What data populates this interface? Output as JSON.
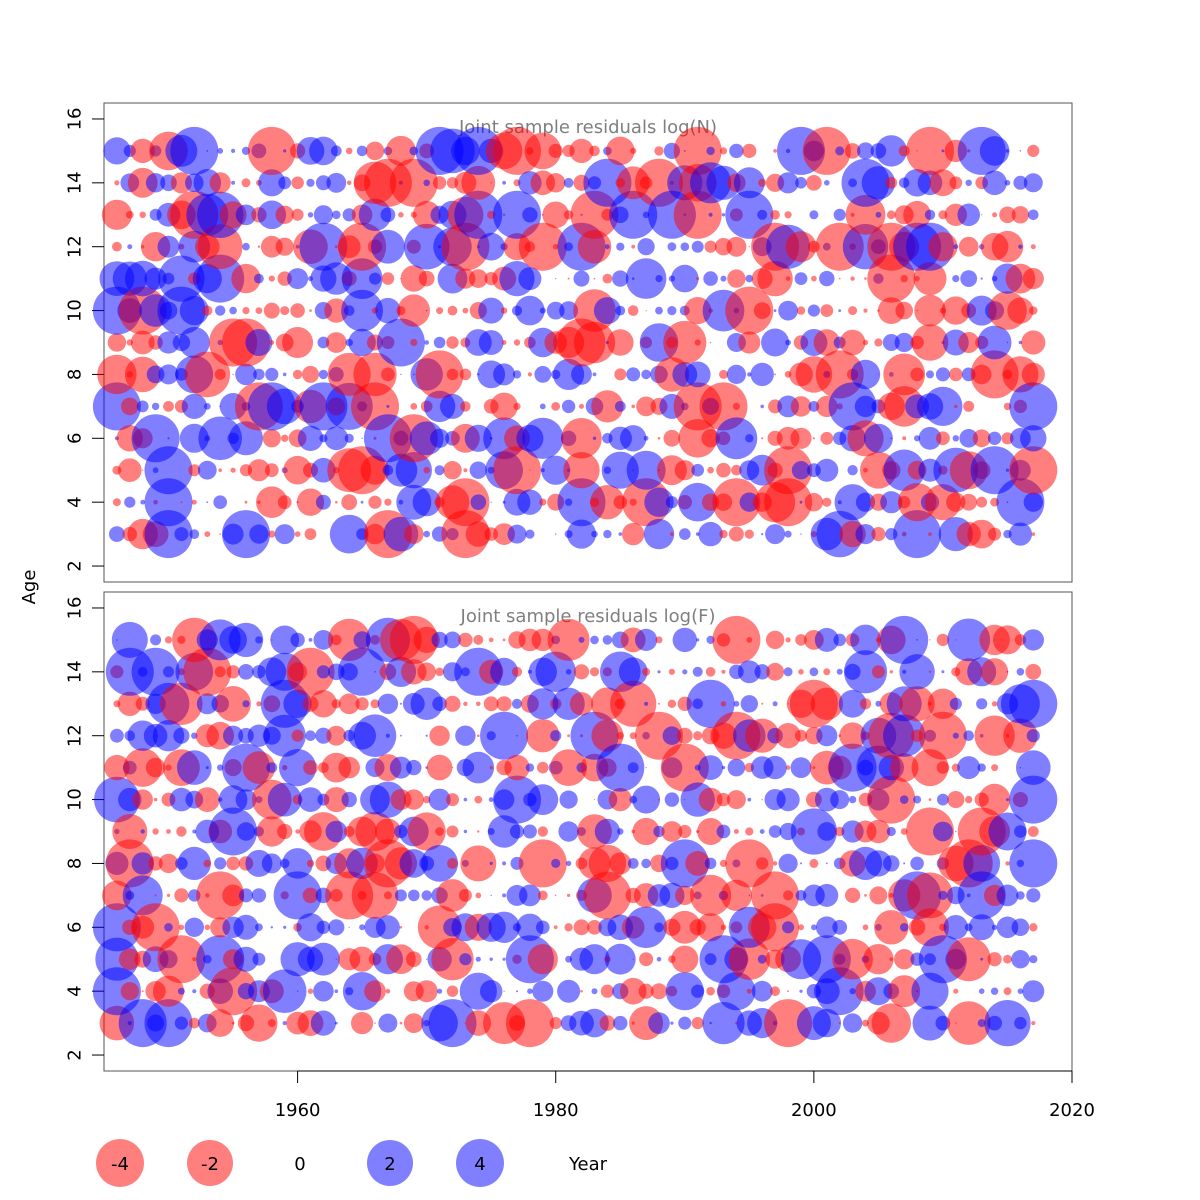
{
  "chart_data": [
    {
      "type": "scatter",
      "title": "Joint sample residuals log(N)",
      "ylabel": "Age",
      "ylim": [
        1.5,
        16.5
      ],
      "xlim": [
        1945,
        2020
      ],
      "yticks": [
        2,
        4,
        6,
        8,
        10,
        12,
        14,
        16
      ],
      "years": [
        1946,
        2017
      ],
      "ages": [
        3,
        4,
        5,
        6,
        7,
        8,
        9,
        10,
        11,
        12,
        13,
        14,
        15
      ],
      "seed": 17,
      "highlights": [
        {
          "year": 1946,
          "age": 7,
          "value": 4.0
        },
        {
          "year": 1946,
          "age": 10,
          "value": 3.5
        },
        {
          "year": 1948,
          "age": 10,
          "value": -3.2
        },
        {
          "year": 1950,
          "age": 3,
          "value": 2.8
        },
        {
          "year": 1950,
          "age": 5,
          "value": 3.0
        },
        {
          "year": 1950,
          "age": 4,
          "value": 3.2
        },
        {
          "year": 1955,
          "age": 9,
          "value": -3.4
        },
        {
          "year": 1957,
          "age": 7,
          "value": -3.5
        },
        {
          "year": 1958,
          "age": 15,
          "value": -2.8
        },
        {
          "year": 1962,
          "age": 12,
          "value": 3.0
        },
        {
          "year": 1965,
          "age": 5,
          "value": -2.8
        },
        {
          "year": 1967,
          "age": 3,
          "value": -2.9
        },
        {
          "year": 1967,
          "age": 6,
          "value": 3.2
        },
        {
          "year": 1968,
          "age": 9,
          "value": 2.8
        },
        {
          "year": 1969,
          "age": 14,
          "value": -3.8
        },
        {
          "year": 1971,
          "age": 8,
          "value": -3.0
        },
        {
          "year": 1973,
          "age": 3,
          "value": -2.8
        },
        {
          "year": 1973,
          "age": 4,
          "value": -3.2
        },
        {
          "year": 1974,
          "age": 13,
          "value": 3.8
        },
        {
          "year": 1974,
          "age": 15,
          "value": 3.0
        },
        {
          "year": 1977,
          "age": 13,
          "value": 3.8
        },
        {
          "year": 1977,
          "age": 5,
          "value": -3.0
        },
        {
          "year": 1982,
          "age": 4,
          "value": 3.0
        },
        {
          "year": 1984,
          "age": 14,
          "value": 3.2
        },
        {
          "year": 1989,
          "age": 13,
          "value": 3.8
        },
        {
          "year": 1991,
          "age": 13,
          "value": -3.8
        },
        {
          "year": 1991,
          "age": 15,
          "value": -3.0
        },
        {
          "year": 1995,
          "age": 13,
          "value": 3.2
        },
        {
          "year": 1998,
          "age": 4,
          "value": -3.0
        },
        {
          "year": 1998,
          "age": 5,
          "value": -2.8
        },
        {
          "year": 1999,
          "age": 15,
          "value": 3.4
        },
        {
          "year": 2002,
          "age": 12,
          "value": -3.0
        },
        {
          "year": 2003,
          "age": 7,
          "value": 3.4
        },
        {
          "year": 2004,
          "age": 14,
          "value": 3.0
        },
        {
          "year": 2006,
          "age": 11,
          "value": -3.5
        },
        {
          "year": 2008,
          "age": 12,
          "value": 3.6
        },
        {
          "year": 2009,
          "age": 15,
          "value": -3.6
        },
        {
          "year": 2013,
          "age": 15,
          "value": 3.4
        },
        {
          "year": 2014,
          "age": 5,
          "value": 3.2
        },
        {
          "year": 2016,
          "age": 4,
          "value": 2.8
        },
        {
          "year": 2017,
          "age": 7,
          "value": 3.2
        },
        {
          "year": 2017,
          "age": 5,
          "value": -3.0
        }
      ]
    },
    {
      "type": "scatter",
      "title": "Joint sample residuals log(F)",
      "ylabel": "",
      "ylim": [
        1.5,
        16.5
      ],
      "xlim": [
        1945,
        2020
      ],
      "yticks": [
        2,
        4,
        6,
        8,
        10,
        12,
        14,
        16
      ],
      "years": [
        1946,
        2017
      ],
      "ages": [
        3,
        4,
        5,
        6,
        7,
        8,
        9,
        10,
        11,
        12,
        13,
        14,
        15
      ],
      "seed": 91,
      "highlights": [
        {
          "year": 1946,
          "age": 4,
          "value": 3.8
        },
        {
          "year": 1946,
          "age": 6,
          "value": 3.0
        },
        {
          "year": 1948,
          "age": 3,
          "value": 3.0
        },
        {
          "year": 1949,
          "age": 6,
          "value": -3.4
        },
        {
          "year": 1950,
          "age": 3,
          "value": 3.8
        },
        {
          "year": 1951,
          "age": 5,
          "value": -3.0
        },
        {
          "year": 1953,
          "age": 14,
          "value": -3.4
        },
        {
          "year": 1954,
          "age": 5,
          "value": 3.0
        },
        {
          "year": 1955,
          "age": 9,
          "value": 3.2
        },
        {
          "year": 1955,
          "age": 4,
          "value": -3.2
        },
        {
          "year": 1959,
          "age": 13,
          "value": 3.0
        },
        {
          "year": 1961,
          "age": 14,
          "value": -3.4
        },
        {
          "year": 1964,
          "age": 7,
          "value": -3.0
        },
        {
          "year": 1967,
          "age": 8,
          "value": -3.4
        },
        {
          "year": 1972,
          "age": 3,
          "value": 3.6
        },
        {
          "year": 1974,
          "age": 14,
          "value": 3.4
        },
        {
          "year": 1976,
          "age": 12,
          "value": 3.0
        },
        {
          "year": 1977,
          "age": 10,
          "value": 3.2
        },
        {
          "year": 1978,
          "age": 3,
          "value": -3.4
        },
        {
          "year": 1979,
          "age": 8,
          "value": -3.0
        },
        {
          "year": 1983,
          "age": 12,
          "value": 3.2
        },
        {
          "year": 1985,
          "age": 11,
          "value": 3.4
        },
        {
          "year": 1988,
          "age": 12,
          "value": -3.8
        },
        {
          "year": 1990,
          "age": 11,
          "value": -3.4
        },
        {
          "year": 1992,
          "age": 13,
          "value": 3.6
        },
        {
          "year": 1993,
          "age": 5,
          "value": 3.8
        },
        {
          "year": 1994,
          "age": 12,
          "value": -3.2
        },
        {
          "year": 1997,
          "age": 7,
          "value": -3.4
        },
        {
          "year": 1998,
          "age": 3,
          "value": -3.0
        },
        {
          "year": 2000,
          "age": 13,
          "value": -3.6
        },
        {
          "year": 2003,
          "age": 11,
          "value": 3.6
        },
        {
          "year": 2007,
          "age": 15,
          "value": 3.2
        },
        {
          "year": 2008,
          "age": 7,
          "value": 3.0
        },
        {
          "year": 2010,
          "age": 12,
          "value": -3.4
        },
        {
          "year": 2010,
          "age": 5,
          "value": 3.2
        },
        {
          "year": 2013,
          "age": 9,
          "value": -3.0
        },
        {
          "year": 2017,
          "age": 8,
          "value": 3.4
        },
        {
          "year": 2017,
          "age": 10,
          "value": 3.2
        }
      ]
    }
  ],
  "x_axis": {
    "label": "Year",
    "ticks": [
      1960,
      1980,
      2000,
      2020
    ]
  },
  "legend": [
    {
      "label": "-4",
      "value": -4
    },
    {
      "label": "-2",
      "value": -2
    },
    {
      "label": "0",
      "value": 0
    },
    {
      "label": "2",
      "value": 2
    },
    {
      "label": "4",
      "value": 4
    }
  ],
  "colors": {
    "negative": "#ff0000",
    "positive": "#0000ff",
    "frame": "#555555"
  }
}
